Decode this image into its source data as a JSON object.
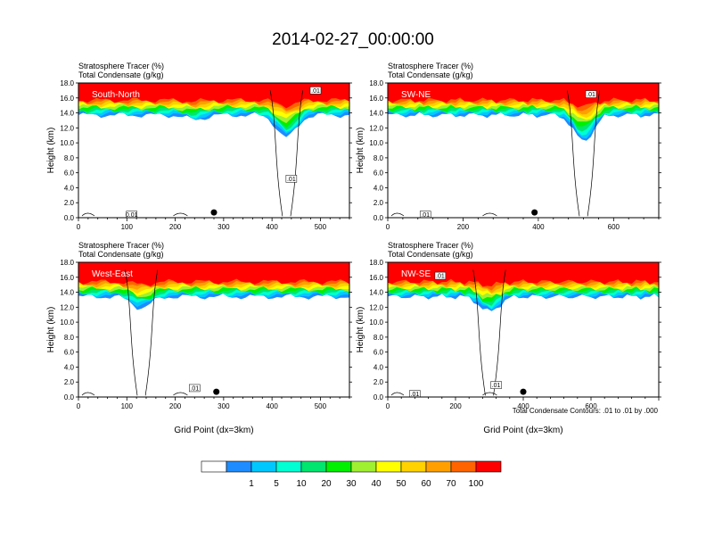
{
  "figure": {
    "title": "2014-02-27_00:00:00",
    "contour_note": "Total Condensate Contours: .01 to .01 by .000",
    "colorbar_labels": [
      "1",
      "5",
      "10",
      "20",
      "30",
      "40",
      "50",
      "60",
      "70",
      "100"
    ],
    "colorbar_colors": [
      "#ffffff",
      "#1e8cff",
      "#00c8ff",
      "#00ffd2",
      "#00e66e",
      "#00f000",
      "#a0f032",
      "#ffff00",
      "#ffd200",
      "#ffa000",
      "#ff6400",
      "#ff0000"
    ]
  },
  "chart_data": [
    {
      "type": "heatmap",
      "panel_label": "South-North",
      "header_line1": "Stratosphere Tracer   (%)",
      "header_line2": "Total Condensate   (g/kg)",
      "ylabel": "Height (km)",
      "xlabel": "",
      "xlim": [
        0,
        560
      ],
      "ylim": [
        0,
        18
      ],
      "x_ticks": [
        "0",
        "100",
        "200",
        "300",
        "400",
        "500"
      ],
      "y_ticks": [
        "0.0",
        "2.0",
        "4.0",
        "6.0",
        "8.0",
        "10.0",
        "12.0",
        "14.0",
        "16.0",
        "18.0"
      ],
      "tracer_base_km": 14.5,
      "tropopause_features": [
        {
          "x": 430,
          "depth_km": 3
        },
        {
          "x": 240,
          "depth_km": 0.6
        }
      ],
      "contour_tags": [
        {
          "x": 110,
          "y_km": 0.4,
          "label": "0.01"
        },
        {
          "x": 440,
          "y_km": 5.2,
          "label": ".01"
        },
        {
          "x": 490,
          "y_km": 17.0,
          "label": ".01"
        }
      ],
      "marker_x": 280,
      "marker_y_km": 0.7
    },
    {
      "type": "heatmap",
      "panel_label": "SW-NE",
      "header_line1": "Stratosphere Tracer   (%)",
      "header_line2": "Total Condensate   (g/kg)",
      "ylabel": "Height (km)",
      "xlabel": "",
      "xlim": [
        0,
        720
      ],
      "ylim": [
        0,
        18
      ],
      "x_ticks": [
        "0",
        "200",
        "400",
        "600"
      ],
      "y_ticks": [
        "0.0",
        "2.0",
        "4.0",
        "6.0",
        "8.0",
        "10.0",
        "12.0",
        "14.0",
        "16.0",
        "18.0"
      ],
      "tracer_base_km": 14.5,
      "tropopause_features": [
        {
          "x": 520,
          "depth_km": 3.5
        }
      ],
      "contour_tags": [
        {
          "x": 540,
          "y_km": 16.5,
          "label": ".01"
        },
        {
          "x": 100,
          "y_km": 0.4,
          "label": ".01"
        }
      ],
      "marker_x": 390,
      "marker_y_km": 0.7
    },
    {
      "type": "heatmap",
      "panel_label": "West-East",
      "header_line1": "Stratosphere Tracer   (%)",
      "header_line2": "Total Condensate   (g/kg)",
      "ylabel": "Height (km)",
      "xlabel": "Grid Point (dx=3km)",
      "xlim": [
        0,
        560
      ],
      "ylim": [
        0,
        18
      ],
      "x_ticks": [
        "0",
        "100",
        "200",
        "300",
        "400",
        "500"
      ],
      "y_ticks": [
        "0.0",
        "2.0",
        "4.0",
        "6.0",
        "8.0",
        "10.0",
        "12.0",
        "14.0",
        "16.0",
        "18.0"
      ],
      "tracer_base_km": 14.2,
      "tropopause_features": [
        {
          "x": 130,
          "depth_km": 1.5
        }
      ],
      "contour_tags": [
        {
          "x": 240,
          "y_km": 1.2,
          "label": ".01"
        }
      ],
      "marker_x": 285,
      "marker_y_km": 0.7
    },
    {
      "type": "heatmap",
      "panel_label": "NW-SE",
      "header_line1": "Stratosphere Tracer   (%)",
      "header_line2": "Total Condensate   (g/kg)",
      "ylabel": "Height (km)",
      "xlabel": "Grid Point (dx=3km)",
      "xlim": [
        0,
        800
      ],
      "ylim": [
        0,
        18
      ],
      "x_ticks": [
        "0",
        "200",
        "400",
        "600"
      ],
      "y_ticks": [
        "0.0",
        "2.0",
        "4.0",
        "6.0",
        "8.0",
        "10.0",
        "12.0",
        "14.0",
        "16.0",
        "18.0"
      ],
      "tracer_base_km": 14.2,
      "tropopause_features": [
        {
          "x": 300,
          "depth_km": 2
        }
      ],
      "contour_tags": [
        {
          "x": 155,
          "y_km": 16.2,
          "label": ".01"
        },
        {
          "x": 320,
          "y_km": 1.6,
          "label": ".01"
        },
        {
          "x": 80,
          "y_km": 0.4,
          "label": ".01"
        }
      ],
      "marker_x": 400,
      "marker_y_km": 0.7
    }
  ]
}
